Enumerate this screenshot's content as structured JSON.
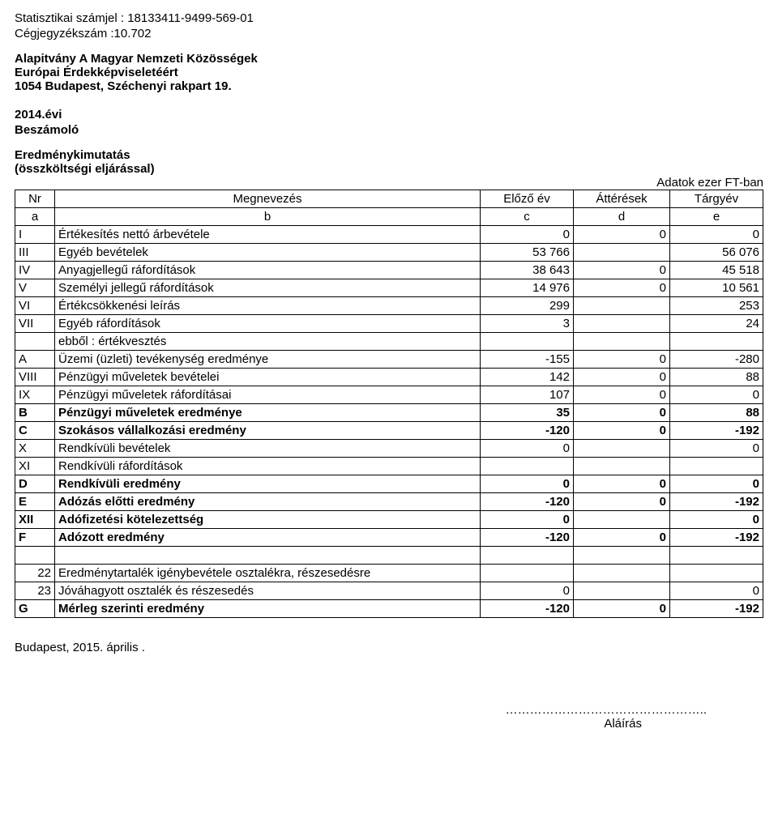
{
  "header": {
    "stat_line": "Statisztikai számjel : 18133411-9499-569-01",
    "reg_line": "Cégjegyzékszám :10.702",
    "org_name1": "Alapitvány A Magyar Nemzeti Közösségek",
    "org_name2": "Európai Érdekképviseletéért",
    "org_addr": "1054 Budapest, Széchenyi rakpart 19.",
    "year": "2014.évi",
    "subtitle": " Beszámoló",
    "section1": "Eredménykimutatás",
    "section2": "(összköltségi eljárással)",
    "unit_note": "Adatok ezer FT-ban"
  },
  "thead": {
    "nr": "Nr",
    "name": "Megnevezés",
    "prev": "Előző év",
    "mid": "Áttérések",
    "curr": "Tárgyév",
    "a": "a",
    "b": "b",
    "c": "c",
    "d": "d",
    "e": "e"
  },
  "rows": {
    "r1": {
      "nr": "I",
      "name": "Értékesítés nettó árbevétele",
      "prev": "0",
      "mid": "0",
      "curr": "0",
      "bold": false
    },
    "r2": {
      "nr": "III",
      "name": "Egyéb bevételek",
      "prev": "53 766",
      "mid": "",
      "curr": "56 076",
      "bold": false
    },
    "r3": {
      "nr": "IV",
      "name": "Anyagjellegű ráfordítások",
      "prev": "38 643",
      "mid": "0",
      "curr": "45 518",
      "bold": false
    },
    "r4": {
      "nr": "V",
      "name": "Személyi jellegű ráfordítások",
      "prev": "14 976",
      "mid": "0",
      "curr": "10 561",
      "bold": false
    },
    "r5": {
      "nr": "VI",
      "name": "Értékcsökkenési leírás",
      "prev": "299",
      "mid": "",
      "curr": "253",
      "bold": false
    },
    "r6": {
      "nr": "VII",
      "name": "Egyéb ráfordítások",
      "prev": "3",
      "mid": "",
      "curr": "24",
      "bold": false
    },
    "r7": {
      "nr": "",
      "name": "ebből : értékvesztés",
      "prev": "",
      "mid": "",
      "curr": "",
      "bold": false
    },
    "r8": {
      "nr": "A",
      "name": "Üzemi (üzleti) tevékenység eredménye",
      "prev": "-155",
      "mid": "0",
      "curr": "-280",
      "bold": false
    },
    "r9": {
      "nr": "VIII",
      "name": "Pénzügyi műveletek bevételei",
      "prev": "142",
      "mid": "0",
      "curr": "88",
      "bold": false
    },
    "r10": {
      "nr": "IX",
      "name": "Pénzügyi műveletek ráfordításai",
      "prev": "107",
      "mid": "0",
      "curr": "0",
      "bold": false
    },
    "r11": {
      "nr": "B",
      "name": "Pénzügyi műveletek eredménye",
      "prev": "35",
      "mid": "0",
      "curr": "88",
      "bold": true
    },
    "r12": {
      "nr": "C",
      "name": "Szokásos vállalkozási eredmény",
      "prev": "-120",
      "mid": "0",
      "curr": "-192",
      "bold": true
    },
    "r13": {
      "nr": "X",
      "name": "Rendkívüli bevételek",
      "prev": "0",
      "mid": "",
      "curr": "0",
      "bold": false
    },
    "r14": {
      "nr": "XI",
      "name": "Rendkívüli ráfordítások",
      "prev": "",
      "mid": "",
      "curr": "",
      "bold": false
    },
    "r15": {
      "nr": "D",
      "name": "Rendkívüli eredmény",
      "prev": "0",
      "mid": "0",
      "curr": "0",
      "bold": true
    },
    "r16": {
      "nr": "E",
      "name": "Adózás előtti eredmény",
      "prev": "-120",
      "mid": "0",
      "curr": "-192",
      "bold": true
    },
    "r17": {
      "nr": "XII",
      "name": "Adófizetési kötelezettség",
      "prev": "0",
      "mid": "",
      "curr": "0",
      "bold": true
    },
    "r18": {
      "nr": "F",
      "name": "Adózott eredmény",
      "prev": "-120",
      "mid": "0",
      "curr": "-192",
      "bold": true
    },
    "gap": {
      "nr": "",
      "name": "",
      "prev": "",
      "mid": "",
      "curr": "",
      "bold": false
    },
    "r19": {
      "nr": "22",
      "name": "Eredménytartalék igénybevétele osztalékra, részesedésre",
      "prev": "",
      "mid": "",
      "curr": "",
      "bold": false
    },
    "r20": {
      "nr": "23",
      "name": "Jóváhagyott osztalék és részesedés",
      "prev": "0",
      "mid": "",
      "curr": "0",
      "bold": false
    },
    "r21": {
      "nr": "G",
      "name": "Mérleg szerinti eredmény",
      "prev": "-120",
      "mid": "0",
      "curr": "-192",
      "bold": true
    }
  },
  "footer": {
    "place_date": "Budapest, 2015. április     .",
    "sign_dots": "…………………………………………..",
    "sign_label": "Aláírás"
  }
}
